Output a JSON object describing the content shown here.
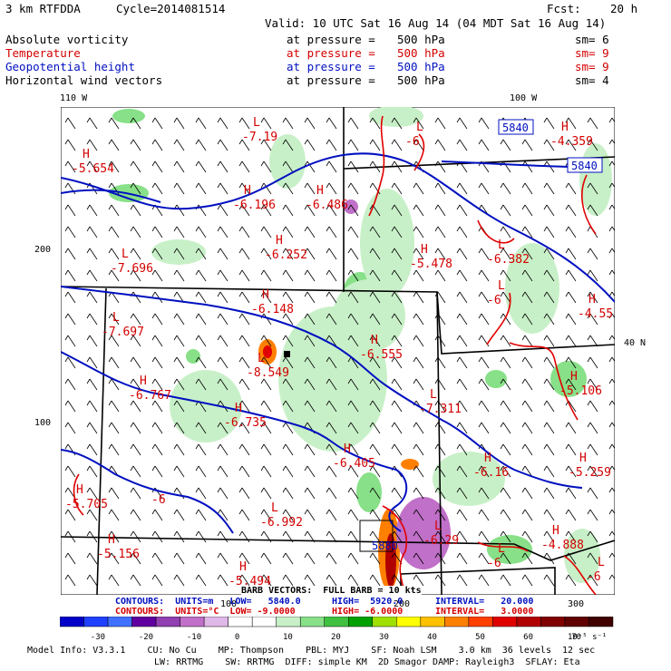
{
  "header": {
    "model": "3 km RTFDDA",
    "cycle": "Cycle=2014081514",
    "fcst_label": "Fcst:",
    "fcst_value": "20 h",
    "valid": "Valid: 10 UTC Sat 16 Aug 14 (04 MDT Sat 16 Aug 14)"
  },
  "fields": [
    {
      "name": "Absolute vorticity",
      "at": "at pressure =",
      "value": "500 hPa",
      "sm": "sm= 6",
      "color": "#000000"
    },
    {
      "name": "Temperature",
      "at": "at pressure =",
      "value": "500 hPa",
      "sm": "sm= 9",
      "color": "#d40000"
    },
    {
      "name": "Geopotential height",
      "at": "at pressure =",
      "value": "500 hPa",
      "sm": "sm= 9",
      "color": "#0010c0"
    },
    {
      "name": "Horizontal wind vectors",
      "at": "at pressure =",
      "value": "500 hPa",
      "sm": "sm= 4",
      "color": "#000000"
    }
  ],
  "map": {
    "lon_labels": [
      "110 W",
      "100 W"
    ],
    "lat_label": "40 N",
    "y_ticks": [
      "200",
      "100"
    ],
    "x_ticks": [
      "100",
      "200",
      "300"
    ],
    "height_contours": [
      "5840",
      "5840",
      "5880"
    ],
    "hl_labels": [
      {
        "t": "H",
        "v": "-5.654"
      },
      {
        "t": "L",
        "v": "-7.19"
      },
      {
        "t": "H",
        "v": "-6.196"
      },
      {
        "t": "H",
        "v": "-6.486"
      },
      {
        "t": "L",
        "v": "-6"
      },
      {
        "t": "H",
        "v": "-4.359"
      },
      {
        "t": "L",
        "v": "-7.696"
      },
      {
        "t": "H",
        "v": "-6.252"
      },
      {
        "t": "H",
        "v": "-5.478"
      },
      {
        "t": "L",
        "v": "-6.382"
      },
      {
        "t": "H",
        "v": "-6.148"
      },
      {
        "t": "L",
        "v": "-6"
      },
      {
        "t": "H",
        "v": "-4.55"
      },
      {
        "t": "L",
        "v": "-7.697"
      },
      {
        "t": "H",
        "v": "-6.555"
      },
      {
        "t": "L",
        "v": "-8.549"
      },
      {
        "t": "H",
        "v": "-6.767"
      },
      {
        "t": "H",
        "v": "-6.735"
      },
      {
        "t": "L",
        "v": "-7.311"
      },
      {
        "t": "H",
        "v": "-5.106"
      },
      {
        "t": "H",
        "v": "-6.405"
      },
      {
        "t": "H",
        "v": "-6.16"
      },
      {
        "t": "H",
        "v": "-5.259"
      },
      {
        "t": "H",
        "v": "-5.705"
      },
      {
        "t": "L",
        "v": "-6.992"
      },
      {
        "t": "H",
        "v": "-5.156"
      },
      {
        "t": "L",
        "v": "-6.29"
      },
      {
        "t": "H",
        "v": "-4.888"
      },
      {
        "t": "L",
        "v": "-6"
      },
      {
        "t": "H",
        "v": "-5.494"
      },
      {
        "t": "L",
        "v": "-6"
      },
      {
        "t": "",
        "v": "-6"
      }
    ]
  },
  "footer": {
    "barb_text": "BARB VECTORS:  FULL BARB = 10 kts",
    "contours1": "CONTOURS:  UNITS=m   LOW=   5840.0",
    "contours1_high": "HIGH=  5920.0",
    "contours1_int": "INTERVAL=   20.000",
    "contours2": "CONTOURS:  UNITS=°C  LOW= -9.0000",
    "contours2_high": "HIGH= -6.0000",
    "contours2_int": "INTERVAL=   3.0000",
    "colorbar_labels": [
      "-30",
      "-20",
      "-10",
      "0",
      "10",
      "20",
      "30",
      "40",
      "50",
      "60",
      "70"
    ],
    "colorbar_unit": "10⁻⁵ s⁻¹",
    "colorbar_colors": [
      "#0000c8",
      "#2040ff",
      "#4070ff",
      "#6000a0",
      "#9040b0",
      "#c070c8",
      "#e0b8e8",
      "#ffffff",
      "#ffffff",
      "#c8f0c8",
      "#88e088",
      "#40c040",
      "#00a000",
      "#a0e000",
      "#ffff00",
      "#ffc000",
      "#ff8000",
      "#ff4000",
      "#e00000",
      "#b00000",
      "#800000",
      "#600000",
      "#400000"
    ],
    "model_info_1": "Model Info: V3.3.1    CU: No Cu    MP: Thompson    PBL: MYJ    SF: Noah LSM    3.0 km  36 levels  12 sec",
    "model_info_2": "LW: RRTMG    SW: RRTMG  DIFF: simple KM  2D Smagor DAMP: Rayleigh3  SFLAY: Eta"
  },
  "colors": {
    "temperature": "#d40000",
    "height": "#0010c0",
    "vort_green": "#9ee89e",
    "border": "#000000"
  }
}
